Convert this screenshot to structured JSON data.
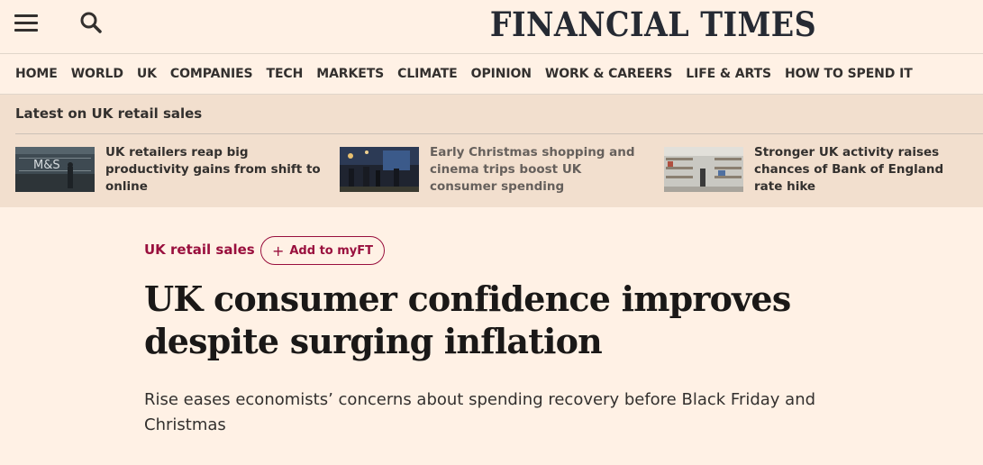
{
  "header": {
    "logo": "FINANCIAL TIMES",
    "menu_icon": "hamburger-menu-icon",
    "search_icon": "search-icon"
  },
  "nav": {
    "items": [
      "HOME",
      "WORLD",
      "UK",
      "COMPANIES",
      "TECH",
      "MARKETS",
      "CLIMATE",
      "OPINION",
      "WORK & CAREERS",
      "LIFE & ARTS",
      "HOW TO SPEND IT"
    ]
  },
  "latest": {
    "title": "Latest on UK retail sales",
    "stories": [
      {
        "headline": "UK retailers reap big productivity gains from shift to online",
        "thumb_text": "M&S"
      },
      {
        "headline": "Early Christmas shopping and cinema trips boost UK consumer spending"
      },
      {
        "headline": "Stronger UK activity raises chances of Bank of England rate hike"
      }
    ]
  },
  "article": {
    "topic": "UK retail sales",
    "myft_label": "Add to myFT",
    "headline": "UK consumer confidence improves despite surging inflation",
    "standfirst": "Rise eases economists’ concerns about spending recovery before Black Friday and Christmas"
  },
  "colors": {
    "background": "#fff1e5",
    "band": "#f2dfce",
    "accent": "#990f3d"
  }
}
